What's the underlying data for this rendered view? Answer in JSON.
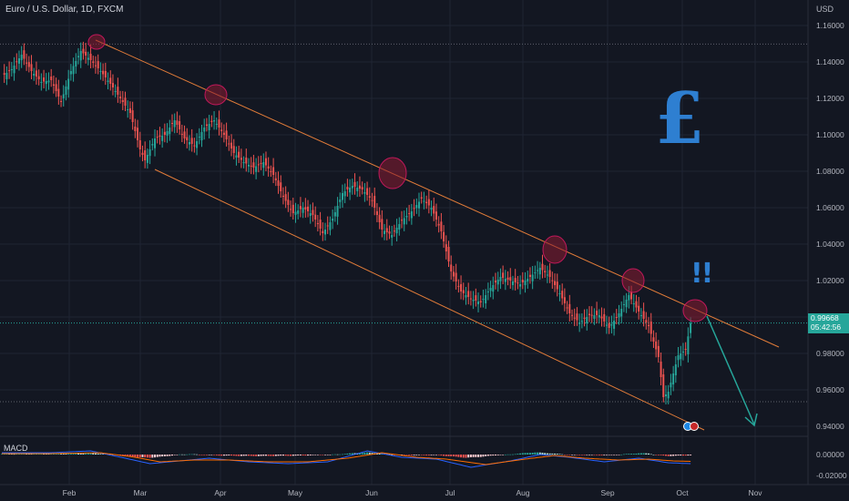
{
  "header": {
    "symbol": "Euro / U.S. Dollar, 1D, FXCM",
    "currency": "USD"
  },
  "annotations": {
    "pound_symbol": "£",
    "exclamation": "!!"
  },
  "price_tag": {
    "price": "0.99668",
    "countdown": "05:42:56"
  },
  "macd": {
    "label": "MACD",
    "ticks": [
      "0.00000",
      "-0.02000"
    ]
  },
  "colors": {
    "background": "#131722",
    "up": "#26a69a",
    "down": "#ef5350",
    "channel": "#e07b39",
    "highlight": "#8a1c32",
    "arrow": "#26a69a",
    "annotation": "#2e7fd1",
    "macd_line": "#2962ff",
    "signal_line": "#ff6d00"
  },
  "chart_data": {
    "type": "candlestick",
    "symbol": "EURUSD",
    "timeframe": "1D",
    "y_ticks": [
      "1.16000",
      "1.14000",
      "1.12000",
      "1.10000",
      "1.08000",
      "1.06000",
      "1.04000",
      "1.02000",
      "1.00000",
      "0.98000",
      "0.96000",
      "0.94000"
    ],
    "x_ticks": [
      "Feb",
      "Mar",
      "Apr",
      "May",
      "Jun",
      "Jul",
      "Aug",
      "Sep",
      "Oct",
      "Nov"
    ],
    "ylim": [
      0.93,
      1.17
    ],
    "last_price": 0.99668,
    "horizontal_levels": [
      1.1498,
      0.99668,
      0.9535
    ],
    "price_path": [
      [
        0,
        1.132
      ],
      [
        4,
        1.136
      ],
      [
        8,
        1.144
      ],
      [
        12,
        1.135
      ],
      [
        16,
        1.129
      ],
      [
        20,
        1.13
      ],
      [
        24,
        1.118
      ],
      [
        28,
        1.135
      ],
      [
        32,
        1.146
      ],
      [
        36,
        1.141
      ],
      [
        40,
        1.135
      ],
      [
        44,
        1.128
      ],
      [
        48,
        1.12
      ],
      [
        52,
        1.112
      ],
      [
        56,
        1.092
      ],
      [
        58,
        1.086
      ],
      [
        62,
        1.098
      ],
      [
        66,
        1.1
      ],
      [
        70,
        1.108
      ],
      [
        74,
        1.098
      ],
      [
        78,
        1.094
      ],
      [
        82,
        1.104
      ],
      [
        86,
        1.108
      ],
      [
        90,
        1.1
      ],
      [
        94,
        1.09
      ],
      [
        98,
        1.085
      ],
      [
        102,
        1.082
      ],
      [
        106,
        1.085
      ],
      [
        110,
        1.078
      ],
      [
        114,
        1.066
      ],
      [
        118,
        1.057
      ],
      [
        122,
        1.06
      ],
      [
        126,
        1.056
      ],
      [
        130,
        1.046
      ],
      [
        134,
        1.054
      ],
      [
        138,
        1.068
      ],
      [
        142,
        1.072
      ],
      [
        146,
        1.07
      ],
      [
        150,
        1.064
      ],
      [
        154,
        1.048
      ],
      [
        158,
        1.045
      ],
      [
        162,
        1.053
      ],
      [
        166,
        1.058
      ],
      [
        170,
        1.065
      ],
      [
        174,
        1.06
      ],
      [
        178,
        1.047
      ],
      [
        182,
        1.025
      ],
      [
        186,
        1.014
      ],
      [
        190,
        1.01
      ],
      [
        194,
        1.008
      ],
      [
        198,
        1.016
      ],
      [
        202,
        1.022
      ],
      [
        206,
        1.02
      ],
      [
        210,
        1.018
      ],
      [
        214,
        1.022
      ],
      [
        218,
        1.027
      ],
      [
        222,
        1.022
      ],
      [
        226,
        1.013
      ],
      [
        230,
        1.002
      ],
      [
        234,
        0.997
      ],
      [
        238,
        1.001
      ],
      [
        242,
        1.001
      ],
      [
        246,
        0.994
      ],
      [
        250,
        1.002
      ],
      [
        254,
        1.012
      ],
      [
        258,
        1.003
      ],
      [
        262,
        0.995
      ],
      [
        266,
        0.978
      ],
      [
        268,
        0.956
      ],
      [
        270,
        0.959
      ],
      [
        274,
        0.979
      ],
      [
        277,
        0.982
      ],
      [
        279,
        0.9967
      ]
    ],
    "macd": {
      "ylim": [
        -0.028,
        0.008
      ],
      "histogram": [
        [
          0,
          0.0006
        ],
        [
          10,
          0.0008
        ],
        [
          20,
          0.0009
        ],
        [
          30,
          0.0014
        ],
        [
          36,
          0.0015
        ],
        [
          44,
          0.0005
        ],
        [
          50,
          -0.0012
        ],
        [
          56,
          -0.003
        ],
        [
          60,
          -0.0035
        ],
        [
          66,
          -0.002
        ],
        [
          72,
          0.0
        ],
        [
          76,
          0.0005
        ],
        [
          82,
          -0.0004
        ],
        [
          88,
          -0.001
        ],
        [
          96,
          -0.0014
        ],
        [
          104,
          -0.0016
        ],
        [
          112,
          -0.0014
        ],
        [
          120,
          -0.0012
        ],
        [
          128,
          -0.0006
        ],
        [
          136,
          0.0002
        ],
        [
          142,
          0.0014
        ],
        [
          148,
          0.0022
        ],
        [
          154,
          0.0012
        ],
        [
          160,
          -0.0003
        ],
        [
          168,
          -0.0008
        ],
        [
          176,
          -0.0006
        ],
        [
          182,
          -0.002
        ],
        [
          188,
          -0.0035
        ],
        [
          194,
          -0.0025
        ],
        [
          200,
          -0.0008
        ],
        [
          206,
          0.0002
        ],
        [
          212,
          0.0016
        ],
        [
          216,
          0.0024
        ],
        [
          222,
          0.0014
        ],
        [
          230,
          -0.0003
        ],
        [
          238,
          -0.0005
        ],
        [
          246,
          -0.0008
        ],
        [
          252,
          0.0003
        ],
        [
          258,
          0.0014
        ],
        [
          262,
          0.0012
        ],
        [
          266,
          -0.0008
        ],
        [
          270,
          -0.0016
        ],
        [
          275,
          -0.0012
        ],
        [
          279,
          -0.0008
        ]
      ],
      "macd_line": [
        [
          0,
          0.002
        ],
        [
          20,
          0.002
        ],
        [
          36,
          0.004
        ],
        [
          50,
          -0.004
        ],
        [
          60,
          -0.01
        ],
        [
          72,
          -0.007
        ],
        [
          84,
          -0.004
        ],
        [
          100,
          -0.008
        ],
        [
          116,
          -0.01
        ],
        [
          132,
          -0.008
        ],
        [
          148,
          0.004
        ],
        [
          162,
          -0.003
        ],
        [
          176,
          -0.005
        ],
        [
          190,
          -0.014
        ],
        [
          206,
          -0.007
        ],
        [
          218,
          0.0
        ],
        [
          230,
          -0.003
        ],
        [
          244,
          -0.008
        ],
        [
          258,
          -0.004
        ],
        [
          270,
          -0.009
        ],
        [
          279,
          -0.01
        ]
      ],
      "signal_line": [
        [
          0,
          0.001
        ],
        [
          20,
          0.001
        ],
        [
          40,
          0.002
        ],
        [
          54,
          -0.003
        ],
        [
          64,
          -0.008
        ],
        [
          78,
          -0.006
        ],
        [
          92,
          -0.006
        ],
        [
          108,
          -0.008
        ],
        [
          124,
          -0.008
        ],
        [
          140,
          -0.004
        ],
        [
          154,
          0.002
        ],
        [
          168,
          -0.003
        ],
        [
          180,
          -0.005
        ],
        [
          196,
          -0.011
        ],
        [
          212,
          -0.005
        ],
        [
          224,
          -0.001
        ],
        [
          236,
          -0.004
        ],
        [
          250,
          -0.006
        ],
        [
          262,
          -0.005
        ],
        [
          272,
          -0.007
        ],
        [
          279,
          -0.0075
        ]
      ]
    }
  }
}
